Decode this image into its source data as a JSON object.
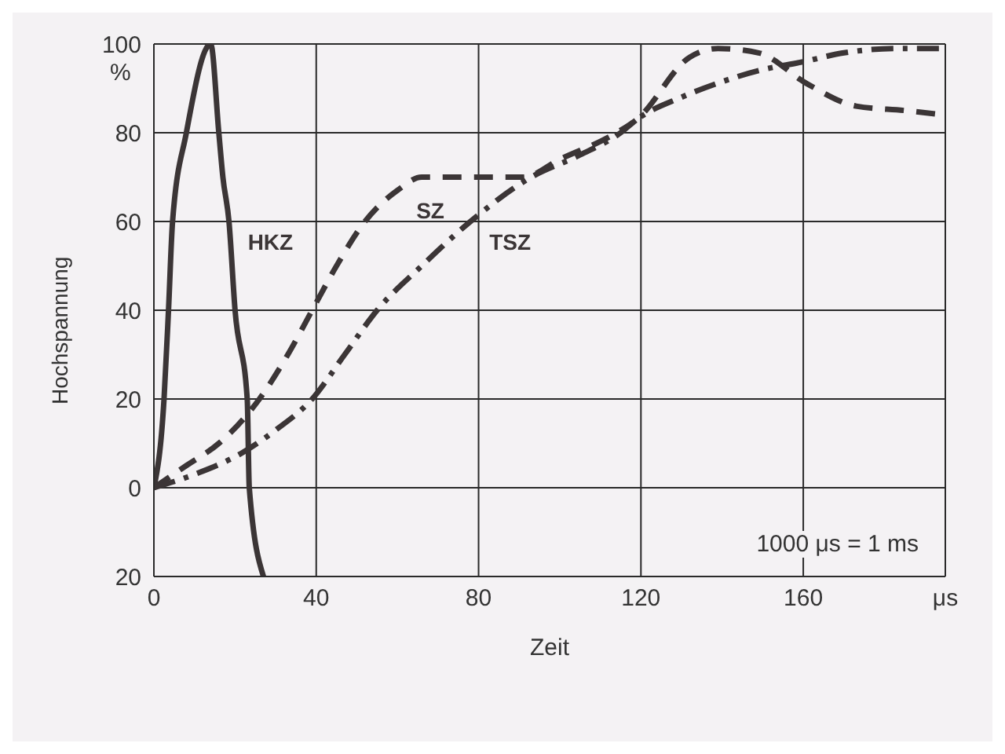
{
  "chart_data": {
    "type": "line",
    "xlabel": "Zeit",
    "ylabel": "Hochspannung",
    "annotations": [
      "%",
      "1000 μs = 1 ms"
    ],
    "xlim": [
      0,
      195
    ],
    "xticks": [
      0,
      40,
      80,
      120,
      160,
      {
        "value": 195,
        "label": "μs"
      }
    ],
    "ylim": [
      -20,
      100
    ],
    "yticks": [
      {
        "value": -20,
        "label": "20"
      },
      0,
      20,
      40,
      60,
      80,
      {
        "value": 100,
        "label": "100"
      }
    ],
    "grid": true,
    "legend": false,
    "marker": "none",
    "series": [
      {
        "name": "HKZ",
        "color": "#3b3536",
        "line_style": "solid",
        "x": [
          0,
          2.5,
          3.6,
          4.6,
          8,
          14,
          16,
          17,
          18.5,
          20,
          23,
          23.5,
          27
        ],
        "values": [
          0,
          20,
          40,
          60,
          80,
          100,
          80,
          70,
          60,
          40,
          20,
          0,
          -20
        ]
      },
      {
        "name": "SZ",
        "color": "#3b3536",
        "line_style": "dashed",
        "x": [
          0,
          8,
          16,
          26,
          33,
          39,
          45,
          52,
          60,
          66,
          75,
          91,
          100,
          114,
          119,
          132,
          139,
          149,
          161,
          173,
          185,
          195
        ],
        "values": [
          0,
          5,
          10,
          20,
          30,
          40,
          50,
          60,
          67,
          70,
          70,
          70,
          74,
          80,
          83,
          97,
          99,
          98,
          91,
          86,
          85,
          84
        ]
      },
      {
        "name": "TSZ",
        "color": "#3b3536",
        "line_style": "dashdot",
        "x": [
          0,
          10,
          22,
          30,
          39,
          47,
          55,
          66,
          78,
          93,
          105,
          115,
          119,
          130,
          140,
          149,
          160,
          170,
          183,
          195
        ],
        "values": [
          0,
          3,
          8,
          13,
          20,
          30,
          40,
          50,
          60,
          70,
          75,
          80,
          83,
          88,
          91.5,
          94,
          96,
          98,
          99,
          99
        ]
      }
    ]
  }
}
